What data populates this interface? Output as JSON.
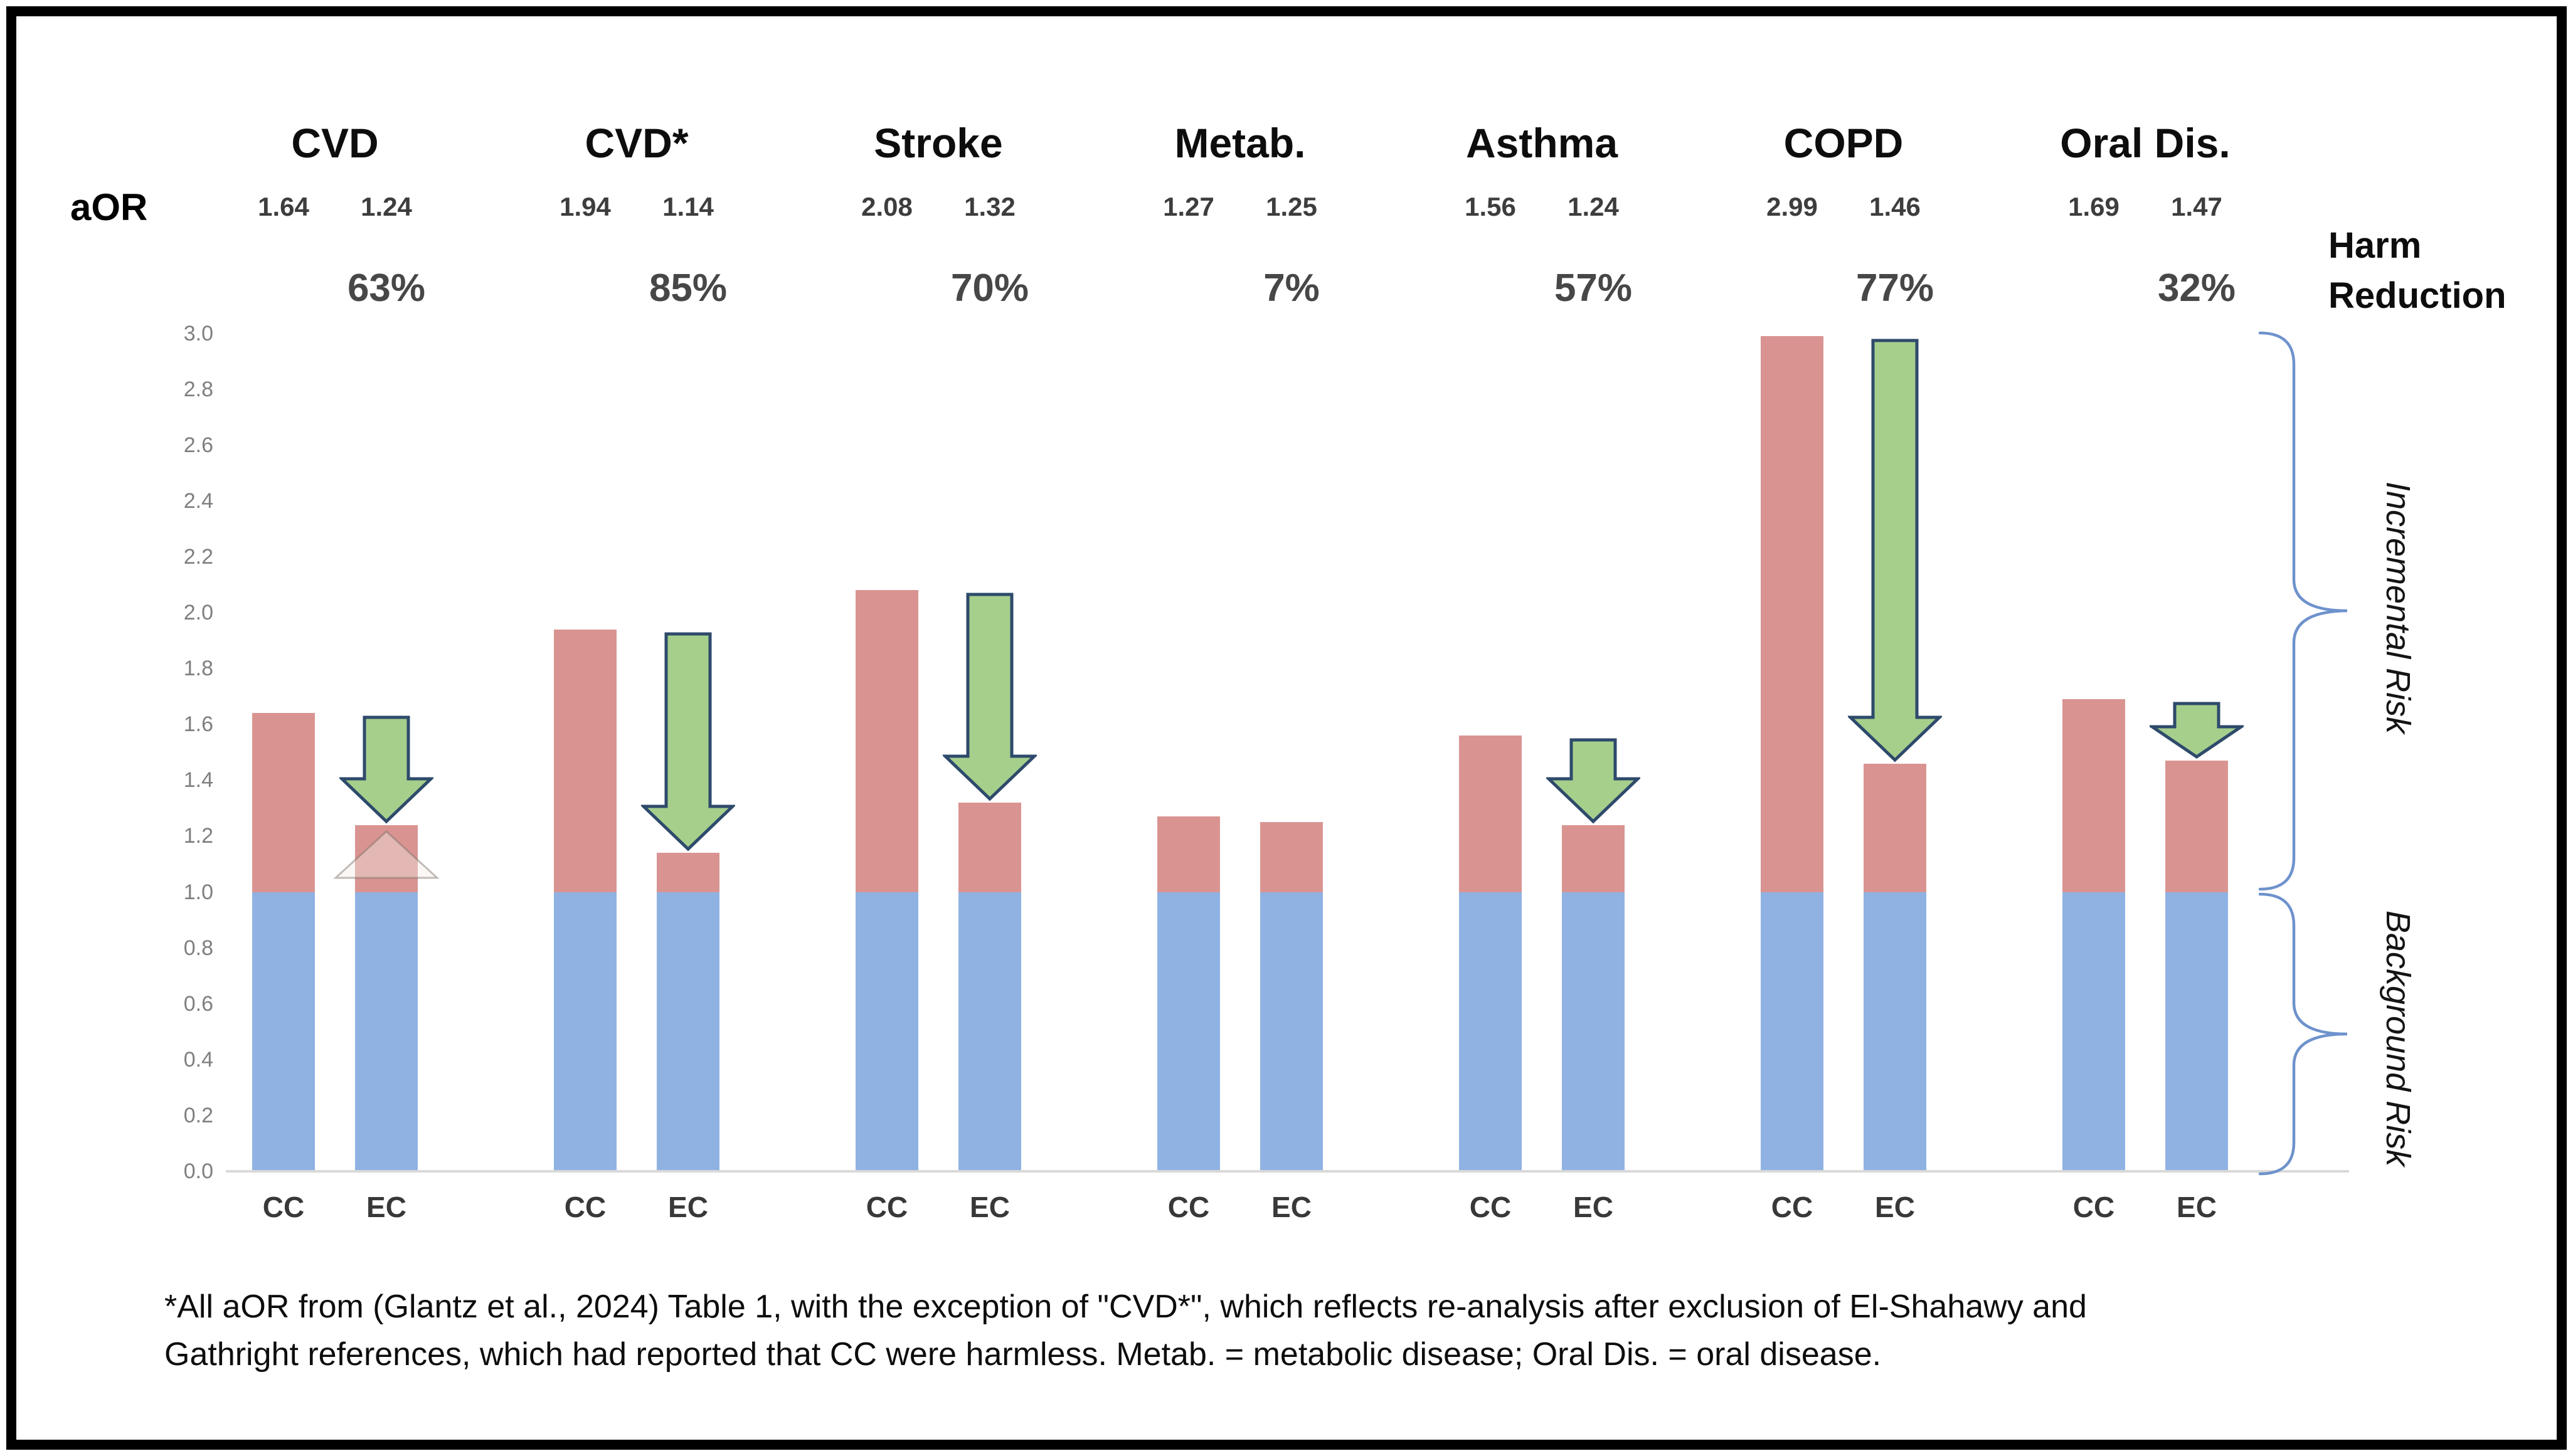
{
  "labels": {
    "aor": "aOR",
    "harm_line1": "Harm",
    "harm_line2": "Reduction",
    "incremental_risk": "Incremental Risk",
    "background_risk": "Background Risk"
  },
  "footnote": {
    "line1": "*All aOR from (Glantz et al., 2024) Table 1, with the exception of \"CVD*\", which reflects re-analysis after exclusion of El-Shahawy and",
    "line2": "Gathright references, which had reported that CC were harmless. Metab. = metabolic disease; Oral Dis. = oral disease."
  },
  "chart_data": {
    "type": "bar",
    "title": "",
    "categories": [
      "CVD",
      "CVD*",
      "Stroke",
      "Metab.",
      "Asthma",
      "COPD",
      "Oral Dis."
    ],
    "series": [
      {
        "name": "CC",
        "values": [
          1.64,
          1.94,
          2.08,
          1.27,
          1.56,
          2.99,
          1.69
        ]
      },
      {
        "name": "EC",
        "values": [
          1.24,
          1.14,
          1.32,
          1.25,
          1.24,
          1.46,
          1.47
        ]
      }
    ],
    "harm_reduction": [
      "63%",
      "85%",
      "70%",
      "7%",
      "57%",
      "77%",
      "32%"
    ],
    "arrows_on": [
      true,
      true,
      true,
      false,
      true,
      true,
      true
    ],
    "ghost_up_arrow_group_index": 0,
    "background_risk_level": 1.0,
    "ylim": [
      0.0,
      3.0
    ],
    "ytick_step": 0.2,
    "grid": false,
    "legend_position": "none",
    "xlabel": "",
    "ylabel": "aOR",
    "colors": {
      "background_bar": "#8FB2E3",
      "incremental_bar": "#D99492",
      "arrow_fill": "#A6CF8C",
      "arrow_stroke": "#2E4A6B",
      "brace": "#6E92CC",
      "axis_line": "#D9D9D9",
      "tick_text": "#7F7F7F",
      "value_text": "#3D3D3D",
      "label_text": "#0D0D0D"
    }
  }
}
